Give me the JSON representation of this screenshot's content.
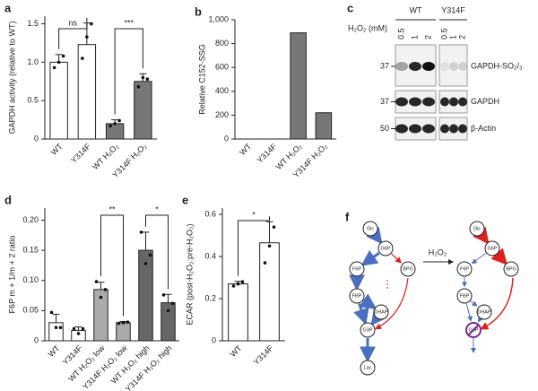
{
  "chart_data": [
    {
      "type": "bar",
      "panel": "a",
      "ylabel": "GAPDH activity (relative to WT)",
      "categories": [
        "WT",
        "Y314F",
        "WT H₂O₂",
        "Y314F H₂O₂"
      ],
      "values": [
        1.0,
        1.23,
        0.2,
        0.75
      ],
      "errors": [
        0.1,
        0.28,
        0.05,
        0.1
      ],
      "points": [
        [
          0.93,
          1.0,
          1.08
        ],
        [
          1.05,
          1.33,
          1.5
        ],
        [
          0.17,
          0.2,
          0.24
        ],
        [
          0.68,
          0.8,
          0.78
        ]
      ],
      "colors": [
        "#ffffff",
        "#ffffff",
        "#777777",
        "#777777"
      ],
      "ylim": [
        0,
        1.6
      ],
      "yticks": [
        0,
        0.5,
        {
          "value": 1,
          "label": "1.0"
        },
        1.5
      ],
      "annotations": [
        "ns",
        "***"
      ]
    },
    {
      "type": "bar",
      "panel": "b",
      "ylabel": "Relative C152-SSG",
      "categories": [
        "WT",
        "Y314F",
        "WT H₂O₂",
        "Y314F H₂O₂"
      ],
      "values": [
        0,
        0,
        890,
        220
      ],
      "colors": [
        "#777777",
        "#777777",
        "#777777",
        "#777777"
      ],
      "ylim": [
        0,
        1000
      ],
      "yticks": [
        0,
        200,
        400,
        600,
        800,
        {
          "value": 1000,
          "label": "1,000"
        }
      ]
    },
    {
      "type": "bar",
      "panel": "d",
      "ylabel": "F6P m + 1/m + 2 ratio",
      "categories": [
        "WT",
        "Y314F",
        "WT H₂O₂ low",
        "Y314F H₂O₂ low",
        "WT H₂O₂ high",
        "Y314F H₂O₂ high"
      ],
      "values": [
        0.03,
        0.017,
        0.085,
        0.03,
        0.15,
        0.063
      ],
      "errors": [
        0.014,
        0.006,
        0.012,
        0.002,
        0.03,
        0.014
      ],
      "points": [
        [
          0.047,
          0.022,
          0.022
        ],
        [
          0.02,
          0.012,
          0.02
        ],
        [
          0.098,
          0.072,
          0.085
        ],
        [
          0.029,
          0.03,
          0.031
        ],
        [
          0.18,
          0.128,
          0.142
        ],
        [
          0.076,
          0.05,
          0.062
        ]
      ],
      "colors": [
        "#ffffff",
        "#ffffff",
        "#aaaaaa",
        "#aaaaaa",
        "#666666",
        "#666666"
      ],
      "ylim": [
        0,
        0.22
      ],
      "yticks": [
        0,
        0.05,
        {
          "value": 0.1,
          "label": "0.10"
        },
        0.15,
        {
          "value": 0.2,
          "label": "0.20"
        }
      ],
      "annotations": [
        "**",
        "*"
      ]
    },
    {
      "type": "bar",
      "panel": "e",
      "ylabel": "ECAR (post-H₂O₂:pre-H₂O₂)",
      "categories": [
        "WT",
        "Y314F"
      ],
      "values": [
        0.27,
        0.465
      ],
      "errors": [
        0.012,
        0.1
      ],
      "points": [
        [
          0.26,
          0.27,
          0.28
        ],
        [
          0.37,
          0.45,
          0.54
        ]
      ],
      "colors": [
        "#ffffff",
        "#ffffff"
      ],
      "ylim": [
        0,
        0.63
      ],
      "yticks": [
        0,
        0.2,
        0.4,
        0.6
      ],
      "annotations": [
        "*"
      ]
    }
  ],
  "panel_c": {
    "letter": "c",
    "groups": [
      "WT",
      "Y314F"
    ],
    "treatment_label": "H₂O₂ (mM)",
    "doses": [
      "0.5",
      "1",
      "2",
      "0.5",
      "1",
      "2"
    ],
    "markers": [
      "37",
      "37",
      "50"
    ],
    "bands": [
      "GAPDH-SO₂/₃",
      "GAPDH",
      "β-Actin"
    ]
  },
  "panel_f": {
    "letter": "f",
    "arrow_label": "H₂O₂",
    "left_nodes": [
      "Glc",
      "G6P",
      "F6P",
      "BPG",
      "FBP",
      "DHAP",
      "G3P",
      "Lac"
    ],
    "right_nodes": [
      "Glc",
      "G6P",
      "F6P",
      "BPG",
      "FBP",
      "DHAP",
      "G3P"
    ]
  }
}
